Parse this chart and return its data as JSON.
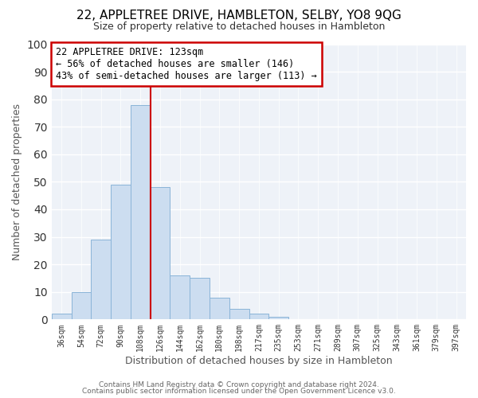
{
  "title": "22, APPLETREE DRIVE, HAMBLETON, SELBY, YO8 9QG",
  "subtitle": "Size of property relative to detached houses in Hambleton",
  "xlabel": "Distribution of detached houses by size in Hambleton",
  "ylabel": "Number of detached properties",
  "bar_color": "#ccddf0",
  "bar_edge_color": "#8ab4d8",
  "bin_labels": [
    "36sqm",
    "54sqm",
    "72sqm",
    "90sqm",
    "108sqm",
    "126sqm",
    "144sqm",
    "162sqm",
    "180sqm",
    "198sqm",
    "217sqm",
    "235sqm",
    "253sqm",
    "271sqm",
    "289sqm",
    "307sqm",
    "325sqm",
    "343sqm",
    "361sqm",
    "379sqm",
    "397sqm"
  ],
  "bar_heights": [
    2,
    10,
    29,
    49,
    78,
    48,
    16,
    15,
    8,
    4,
    2,
    1,
    0,
    0,
    0,
    0,
    0,
    0,
    0,
    0,
    0
  ],
  "vline_color": "#cc0000",
  "annotation_title": "22 APPLETREE DRIVE: 123sqm",
  "annotation_line1": "← 56% of detached houses are smaller (146)",
  "annotation_line2": "43% of semi-detached houses are larger (113) →",
  "annotation_box_color": "#ffffff",
  "annotation_box_edge": "#cc0000",
  "ylim": [
    0,
    100
  ],
  "background_color": "#ffffff",
  "plot_background": "#eef2f8",
  "grid_color": "#ffffff",
  "footer1": "Contains HM Land Registry data © Crown copyright and database right 2024.",
  "footer2": "Contains public sector information licensed under the Open Government Licence v3.0."
}
